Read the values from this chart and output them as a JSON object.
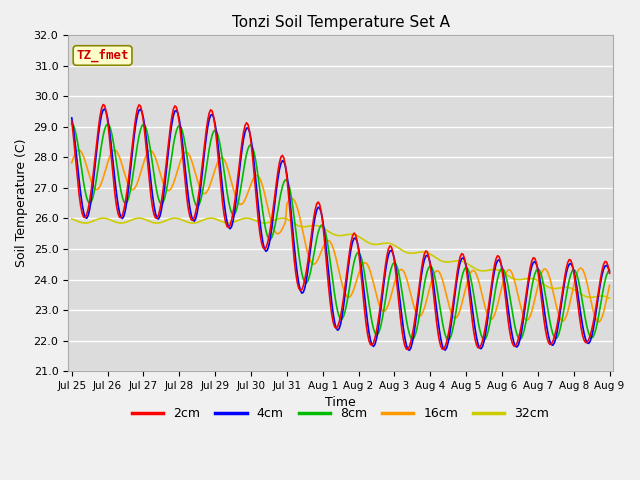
{
  "title": "Tonzi Soil Temperature Set A",
  "xlabel": "Time",
  "ylabel": "Soil Temperature (C)",
  "ylim": [
    21.0,
    32.0
  ],
  "yticks": [
    21.0,
    22.0,
    23.0,
    24.0,
    25.0,
    26.0,
    27.0,
    28.0,
    29.0,
    30.0,
    31.0,
    32.0
  ],
  "legend_labels": [
    "2cm",
    "4cm",
    "8cm",
    "16cm",
    "32cm"
  ],
  "legend_colors": [
    "#ff0000",
    "#0000ff",
    "#00bb00",
    "#ff9900",
    "#cccc00"
  ],
  "annotation_text": "TZ_fmet",
  "annotation_color": "#cc0000",
  "annotation_bg": "#ffffcc",
  "annotation_border": "#888800",
  "plot_bg_color": "#dcdcdc",
  "fig_bg_color": "#f0f0f0",
  "grid_color": "#ffffff",
  "line_width": 1.2,
  "figsize": [
    6.4,
    4.8
  ],
  "dpi": 100
}
